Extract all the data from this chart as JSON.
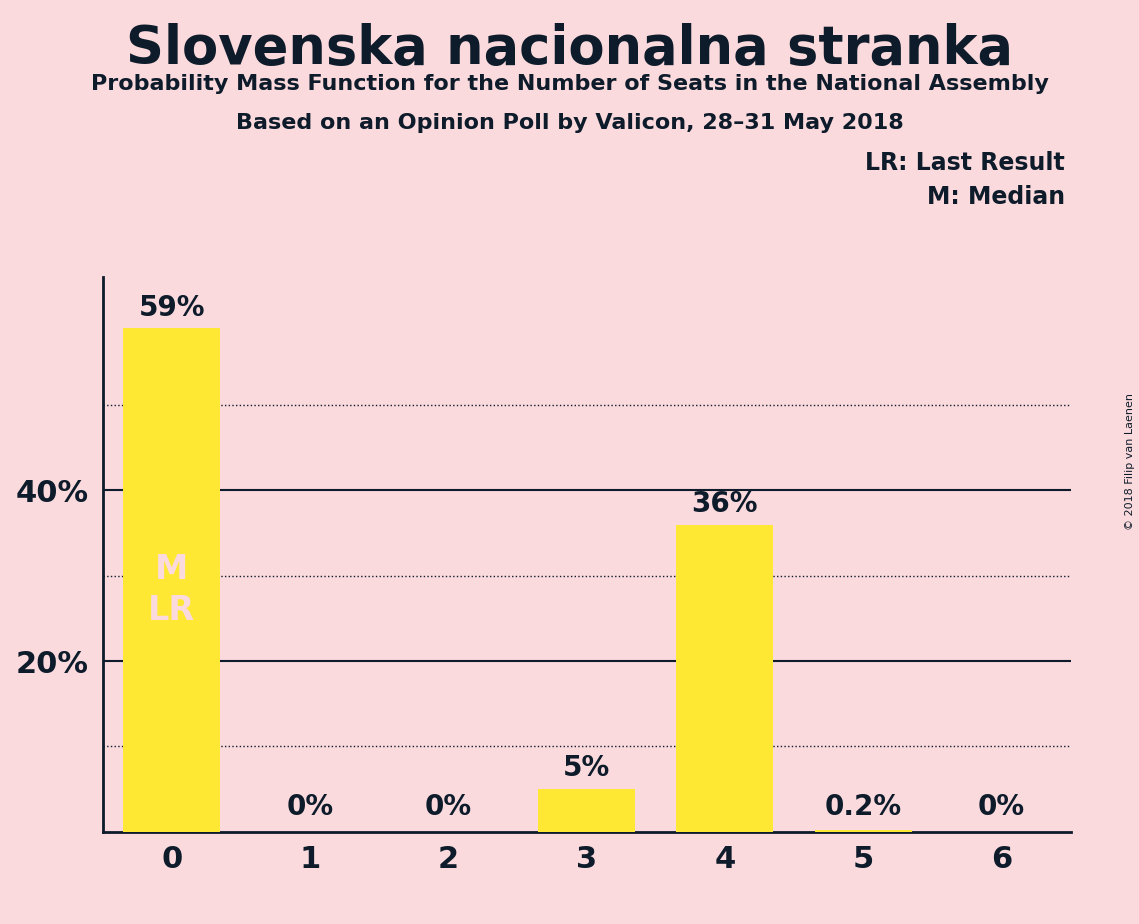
{
  "title": "Slovenska nacionalna stranka",
  "subtitle1": "Probability Mass Function for the Number of Seats in the National Assembly",
  "subtitle2": "Based on an Opinion Poll by Valicon, 28–31 May 2018",
  "copyright": "© 2018 Filip van Laenen",
  "legend_lr": "LR: Last Result",
  "legend_m": "M: Median",
  "categories": [
    0,
    1,
    2,
    3,
    4,
    5,
    6
  ],
  "values": [
    0.59,
    0.0,
    0.0,
    0.05,
    0.36,
    0.002,
    0.0
  ],
  "bar_labels": [
    "59%",
    "0%",
    "0%",
    "5%",
    "36%",
    "0.2%",
    "0%"
  ],
  "bar_color": "#FFE833",
  "background_color": "#FADADD",
  "text_color": "#0d1b2a",
  "inside_label_color": "#FADADD",
  "ml_label_color": "#FADADD",
  "ylim": [
    0,
    0.65
  ],
  "grid_dotted": [
    0.1,
    0.3,
    0.5
  ],
  "grid_solid": [
    0.2,
    0.4
  ],
  "ytick_positions": [
    0.2,
    0.4
  ],
  "ytick_labels": [
    "20%",
    "40%"
  ]
}
